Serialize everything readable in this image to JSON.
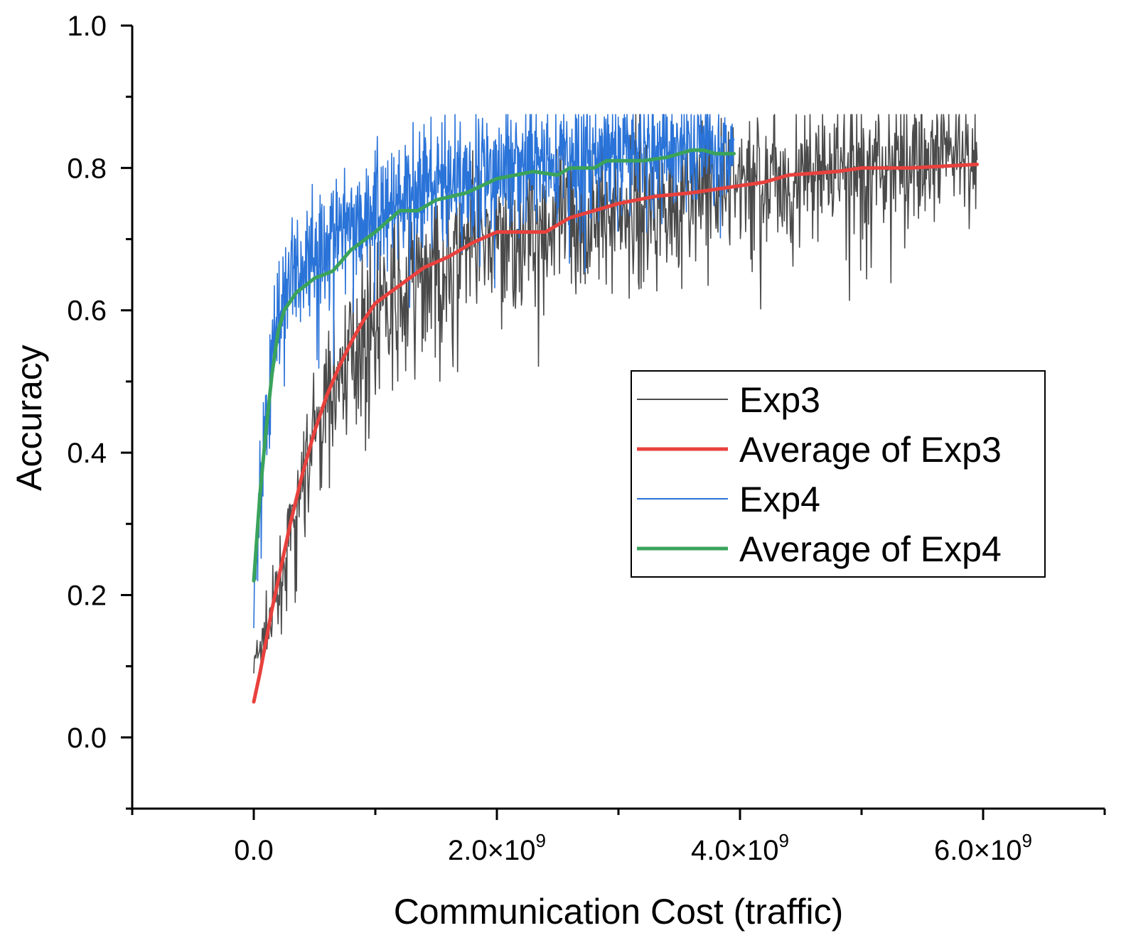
{
  "chart_data": {
    "type": "line",
    "title": "",
    "xlabel": "Communication Cost (traffic)",
    "ylabel": "Accuracy",
    "xlim": [
      -1000000000,
      7000000000
    ],
    "ylim": [
      -0.1,
      1.0
    ],
    "x_major_ticks": [
      0,
      2000000000,
      4000000000,
      6000000000
    ],
    "x_tick_labels": [
      "0.0",
      "2.0×10",
      "4.0×10",
      "6.0×10"
    ],
    "x_tick_exponents": [
      "",
      "9",
      "9",
      "9"
    ],
    "x_minor_ticks": [
      -1000000000,
      1000000000,
      3000000000,
      5000000000,
      7000000000
    ],
    "y_major_ticks": [
      0.0,
      0.2,
      0.4,
      0.6,
      0.8,
      1.0
    ],
    "y_tick_labels": [
      "0.0",
      "0.2",
      "0.4",
      "0.6",
      "0.8",
      "1.0"
    ],
    "y_minor_ticks": [
      -0.1,
      0.1,
      0.3,
      0.5,
      0.7,
      0.9
    ],
    "grid": false,
    "legend_position": "center-right",
    "colors": {
      "exp3": "#4a4a4a",
      "avg_exp3": "#e8413d",
      "exp4": "#2a73d8",
      "avg_exp4": "#3aa35b"
    },
    "series": [
      {
        "name": "Exp3",
        "kind": "noisy",
        "color_key": "exp3",
        "x_range": [
          0,
          5950000000
        ],
        "mean": [
          [
            0,
            0.1
          ],
          [
            150000000,
            0.17
          ],
          [
            300000000,
            0.28
          ],
          [
            500000000,
            0.42
          ],
          [
            700000000,
            0.51
          ],
          [
            900000000,
            0.57
          ],
          [
            1200000000,
            0.62
          ],
          [
            1500000000,
            0.66
          ],
          [
            2000000000,
            0.7
          ],
          [
            2500000000,
            0.72
          ],
          [
            3000000000,
            0.74
          ],
          [
            3500000000,
            0.76
          ],
          [
            4000000000,
            0.78
          ],
          [
            4500000000,
            0.79
          ],
          [
            5000000000,
            0.8
          ],
          [
            5500000000,
            0.81
          ],
          [
            5950000000,
            0.81
          ]
        ],
        "spread": [
          [
            0,
            0.02
          ],
          [
            500000000,
            0.06
          ],
          [
            1000000000,
            0.07
          ],
          [
            3000000000,
            0.07
          ],
          [
            5950000000,
            0.06
          ]
        ]
      },
      {
        "name": "Average of Exp3",
        "kind": "smooth",
        "color_key": "avg_exp3",
        "points": [
          [
            0,
            0.05
          ],
          [
            50000000,
            0.09
          ],
          [
            100000000,
            0.135
          ],
          [
            150000000,
            0.18
          ],
          [
            200000000,
            0.22
          ],
          [
            300000000,
            0.3
          ],
          [
            400000000,
            0.37
          ],
          [
            500000000,
            0.43
          ],
          [
            600000000,
            0.48
          ],
          [
            700000000,
            0.52
          ],
          [
            800000000,
            0.555
          ],
          [
            900000000,
            0.585
          ],
          [
            1000000000,
            0.61
          ],
          [
            1200000000,
            0.635
          ],
          [
            1400000000,
            0.66
          ],
          [
            1600000000,
            0.675
          ],
          [
            1800000000,
            0.695
          ],
          [
            2000000000,
            0.71
          ],
          [
            2400000000,
            0.71
          ],
          [
            2600000000,
            0.73
          ],
          [
            3000000000,
            0.75
          ],
          [
            3300000000,
            0.76
          ],
          [
            3600000000,
            0.765
          ],
          [
            4000000000,
            0.775
          ],
          [
            4200000000,
            0.78
          ],
          [
            4400000000,
            0.79
          ],
          [
            4800000000,
            0.795
          ],
          [
            5000000000,
            0.8
          ],
          [
            5400000000,
            0.8
          ],
          [
            5950000000,
            0.805
          ]
        ]
      },
      {
        "name": "Exp4",
        "kind": "noisy",
        "color_key": "exp4",
        "x_range": [
          0,
          3950000000
        ],
        "mean": [
          [
            0,
            0.2
          ],
          [
            50000000,
            0.35
          ],
          [
            100000000,
            0.45
          ],
          [
            200000000,
            0.6
          ],
          [
            300000000,
            0.65
          ],
          [
            500000000,
            0.68
          ],
          [
            800000000,
            0.72
          ],
          [
            1200000000,
            0.76
          ],
          [
            1600000000,
            0.78
          ],
          [
            2000000000,
            0.8
          ],
          [
            2500000000,
            0.81
          ],
          [
            3000000000,
            0.82
          ],
          [
            3500000000,
            0.83
          ],
          [
            3950000000,
            0.83
          ]
        ],
        "spread": [
          [
            0,
            0.03
          ],
          [
            200000000,
            0.06
          ],
          [
            1000000000,
            0.06
          ],
          [
            3950000000,
            0.05
          ]
        ]
      },
      {
        "name": "Average of Exp4",
        "kind": "smooth",
        "color_key": "avg_exp4",
        "points": [
          [
            0,
            0.22
          ],
          [
            50000000,
            0.34
          ],
          [
            100000000,
            0.43
          ],
          [
            150000000,
            0.51
          ],
          [
            200000000,
            0.57
          ],
          [
            250000000,
            0.6
          ],
          [
            350000000,
            0.625
          ],
          [
            500000000,
            0.645
          ],
          [
            650000000,
            0.655
          ],
          [
            800000000,
            0.685
          ],
          [
            1000000000,
            0.71
          ],
          [
            1200000000,
            0.74
          ],
          [
            1350000000,
            0.74
          ],
          [
            1500000000,
            0.755
          ],
          [
            1750000000,
            0.765
          ],
          [
            2000000000,
            0.785
          ],
          [
            2300000000,
            0.795
          ],
          [
            2500000000,
            0.79
          ],
          [
            2600000000,
            0.8
          ],
          [
            2800000000,
            0.8
          ],
          [
            2900000000,
            0.81
          ],
          [
            3200000000,
            0.81
          ],
          [
            3400000000,
            0.815
          ],
          [
            3600000000,
            0.825
          ],
          [
            3700000000,
            0.825
          ],
          [
            3800000000,
            0.82
          ],
          [
            3950000000,
            0.82
          ]
        ]
      }
    ],
    "legend": [
      {
        "label": "Exp3",
        "color_key": "exp3",
        "style": "thin"
      },
      {
        "label": "Average of Exp3",
        "color_key": "avg_exp3",
        "style": "thick"
      },
      {
        "label": "Exp4",
        "color_key": "exp4",
        "style": "thin"
      },
      {
        "label": "Average of Exp4",
        "color_key": "avg_exp4",
        "style": "thick"
      }
    ]
  }
}
